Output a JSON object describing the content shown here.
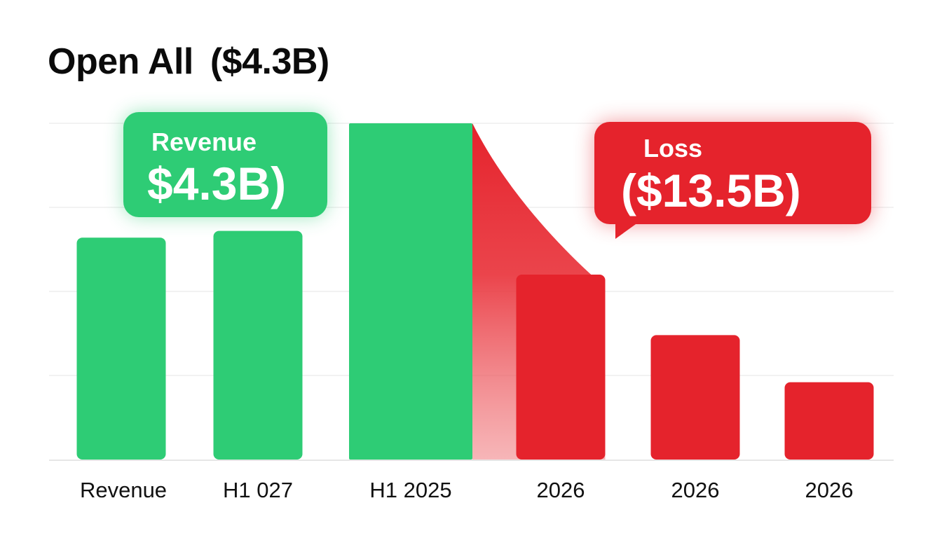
{
  "title": "Open All",
  "title_value": "($4.3B)",
  "callouts": {
    "revenue": {
      "label": "Revenue",
      "value": "$4.3B)"
    },
    "loss": {
      "label": "Loss",
      "value": "($13.5B)"
    }
  },
  "colors": {
    "revenue": "#2ecc75",
    "loss": "#e5232c",
    "grid": "#eeeeee",
    "axis": "#e6e6e6"
  },
  "chart_data": {
    "type": "bar",
    "title": "Open All ($4.3B)",
    "categories": [
      "Revenue",
      "H1 027",
      "H1 2025",
      "2026",
      "2026",
      "2026"
    ],
    "series": [
      {
        "name": "Revenue",
        "color": "#2ecc75",
        "values": [
          66,
          68,
          100,
          null,
          null,
          null
        ]
      },
      {
        "name": "Loss",
        "color": "#e5232c",
        "values": [
          null,
          null,
          null,
          55,
          37,
          23
        ]
      }
    ],
    "ylim": [
      0,
      100
    ],
    "gridlines": [
      25,
      50,
      75,
      100
    ],
    "grid": true,
    "xlabel": "",
    "ylabel": "",
    "annotations": [
      {
        "text": "Revenue $4.3B)",
        "target": "H1 2025"
      },
      {
        "text": "Loss ($13.5B)",
        "target": "2026"
      }
    ]
  }
}
